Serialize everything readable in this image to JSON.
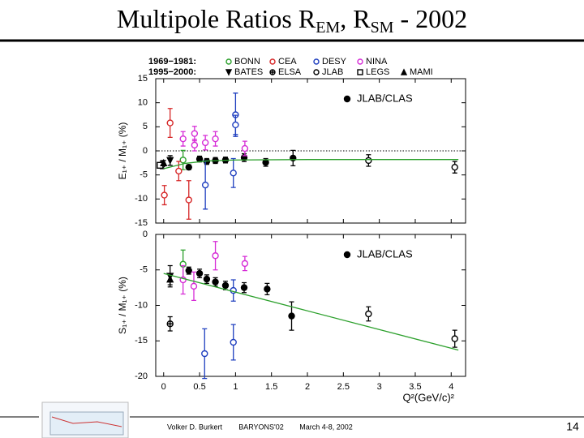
{
  "slide": {
    "title": [
      "Multipole Ratios R",
      "EM",
      ", R",
      "SM",
      " - 2002"
    ],
    "footer": {
      "author": "Volker D. Burkert",
      "conference": "BARYONS'02",
      "date": "March 4-8, 2002",
      "page": "14"
    }
  },
  "chart_data": [
    {
      "type": "scatter",
      "ylabel": "E₁₊ / M₁₊ (%)",
      "legend_periods": [
        "1969−1981:",
        "1995−2000:"
      ],
      "xlim": [
        -0.11,
        4.2
      ],
      "xticks": [
        0,
        0.5,
        1,
        1.5,
        2,
        2.5,
        3,
        3.5,
        4
      ],
      "ylim": [
        -15,
        15
      ],
      "yticks": [
        -15,
        -10,
        -5,
        0,
        5,
        10,
        15
      ],
      "hline": 0,
      "series": [
        {
          "name": "JLAB/CLAS",
          "color": "#000000",
          "marker": "dot",
          "x": [
            0.35,
            0.5,
            0.6,
            0.72,
            0.86,
            1.12,
            1.42,
            1.8
          ],
          "values": [
            -3.4,
            -1.7,
            -2.2,
            -2.0,
            -1.9,
            -1.4,
            -2.4,
            -1.5
          ],
          "errors": [
            0.5,
            0.6,
            0.6,
            0.6,
            0.6,
            0.8,
            0.8,
            1.6
          ]
        },
        {
          "name": "BONN",
          "color": "#2ca02c",
          "marker": "circle",
          "x": [
            0.27
          ],
          "values": [
            -1.9
          ],
          "errors": [
            2
          ]
        },
        {
          "name": "CEA",
          "color": "#d62728",
          "marker": "circle",
          "x": [
            0.09,
            0.01,
            0.35,
            0.21
          ],
          "values": [
            5.8,
            -9.2,
            -10.2,
            -4.2
          ],
          "errors": [
            3,
            2,
            4,
            2
          ]
        },
        {
          "name": "DESY",
          "color": "#1f3fbf",
          "marker": "circle",
          "x": [
            1.0,
            1.0,
            0.58,
            0.97
          ],
          "values": [
            7.5,
            5.4,
            -7.1,
            -4.6
          ],
          "errors": [
            4.5,
            2,
            5,
            3
          ]
        },
        {
          "name": "NINA",
          "color": "#d62bd6",
          "marker": "circle",
          "x": [
            0.27,
            0.43,
            0.43,
            0.58,
            0.72,
            1.13
          ],
          "values": [
            2.5,
            3.6,
            1.2,
            1.7,
            2.5,
            0.5
          ],
          "errors": [
            1.5,
            1.5,
            1.2,
            1.5,
            1.5,
            1.5
          ]
        },
        {
          "name": "BATES",
          "color": "#000000",
          "marker": "tri-down",
          "x": [
            0.09
          ],
          "values": [
            -2.0
          ],
          "errors": [
            1
          ]
        },
        {
          "name": "ELSA",
          "color": "#000000",
          "marker": "cross-circle",
          "x": [
            -0.02
          ],
          "values": [
            -2.9
          ],
          "errors": [
            0.8
          ]
        },
        {
          "name": "JLAB",
          "color": "#000000",
          "marker": "circle",
          "x": [
            2.85,
            4.05
          ],
          "values": [
            -2.0,
            -3.4
          ],
          "errors": [
            1.2,
            1.2
          ]
        },
        {
          "name": "LEGS",
          "color": "#000000",
          "marker": "square",
          "x": [
            -0.05
          ],
          "values": [
            -3.0
          ],
          "errors": [
            0.5
          ]
        },
        {
          "name": "MAMI",
          "color": "#000000",
          "marker": "tri-up",
          "x": [
            0.0
          ],
          "values": [
            -2.5
          ],
          "errors": [
            0.5
          ]
        },
        {
          "color": "#2ca02c",
          "marker": "line",
          "x": [
            0,
            0.3,
            0.6,
            1,
            2,
            3,
            4.1
          ],
          "values": [
            -3.7,
            -2.6,
            -2.1,
            -1.9,
            -1.8,
            -1.8,
            -1.8
          ]
        }
      ]
    },
    {
      "type": "scatter",
      "ylabel": "S₁₊ / M₁₊ (%)",
      "xlabel": "Q²(GeV/c)²",
      "xlim": [
        -0.11,
        4.2
      ],
      "xticks": [
        0,
        0.5,
        1,
        1.5,
        2,
        2.5,
        3,
        3.5,
        4
      ],
      "ylim": [
        -20,
        0
      ],
      "yticks": [
        -20,
        -15,
        -10,
        -5,
        0
      ],
      "series": [
        {
          "name": "JLAB/CLAS",
          "color": "#000000",
          "marker": "dot",
          "x": [
            0.35,
            0.5,
            0.6,
            0.72,
            0.86,
            1.12,
            1.44,
            1.78
          ],
          "values": [
            -5.1,
            -5.5,
            -6.3,
            -6.7,
            -7.2,
            -7.5,
            -7.7,
            -11.5
          ],
          "errors": [
            0.5,
            0.6,
            0.6,
            0.6,
            0.6,
            0.7,
            0.8,
            2
          ]
        },
        {
          "color": "#2ca02c",
          "marker": "circle",
          "x": [
            0.27
          ],
          "values": [
            -4.2
          ],
          "errors": [
            2
          ]
        },
        {
          "color": "#1f3fbf",
          "marker": "circle",
          "x": [
            0.57,
            0.97,
            0.97
          ],
          "values": [
            -16.8,
            -15.2,
            -7.9
          ],
          "errors": [
            3.5,
            2.5,
            1.5
          ]
        },
        {
          "color": "#d62bd6",
          "marker": "circle",
          "x": [
            0.27,
            0.42,
            0.72,
            1.13
          ],
          "values": [
            -6.4,
            -7.3,
            -3.0,
            -4.1
          ],
          "errors": [
            2,
            2,
            2,
            1
          ]
        },
        {
          "color": "#000000",
          "marker": "tri-down",
          "x": [
            0.09
          ],
          "values": [
            -5.9
          ],
          "errors": [
            1.5
          ]
        },
        {
          "color": "#000000",
          "marker": "cross-circle",
          "x": [
            0.09
          ],
          "values": [
            -12.6
          ],
          "errors": [
            1
          ]
        },
        {
          "color": "#000000",
          "marker": "circle",
          "x": [
            2.85,
            4.05
          ],
          "values": [
            -11.2,
            -14.7
          ],
          "errors": [
            1,
            1.2
          ]
        },
        {
          "color": "#000000",
          "marker": "tri-up",
          "x": [
            0.09
          ],
          "values": [
            -6.3
          ],
          "errors": [
            0.8
          ]
        },
        {
          "color": "#2ca02c",
          "marker": "line",
          "x": [
            0,
            4.1
          ],
          "values": [
            -5.5,
            -16.3
          ]
        }
      ]
    }
  ]
}
